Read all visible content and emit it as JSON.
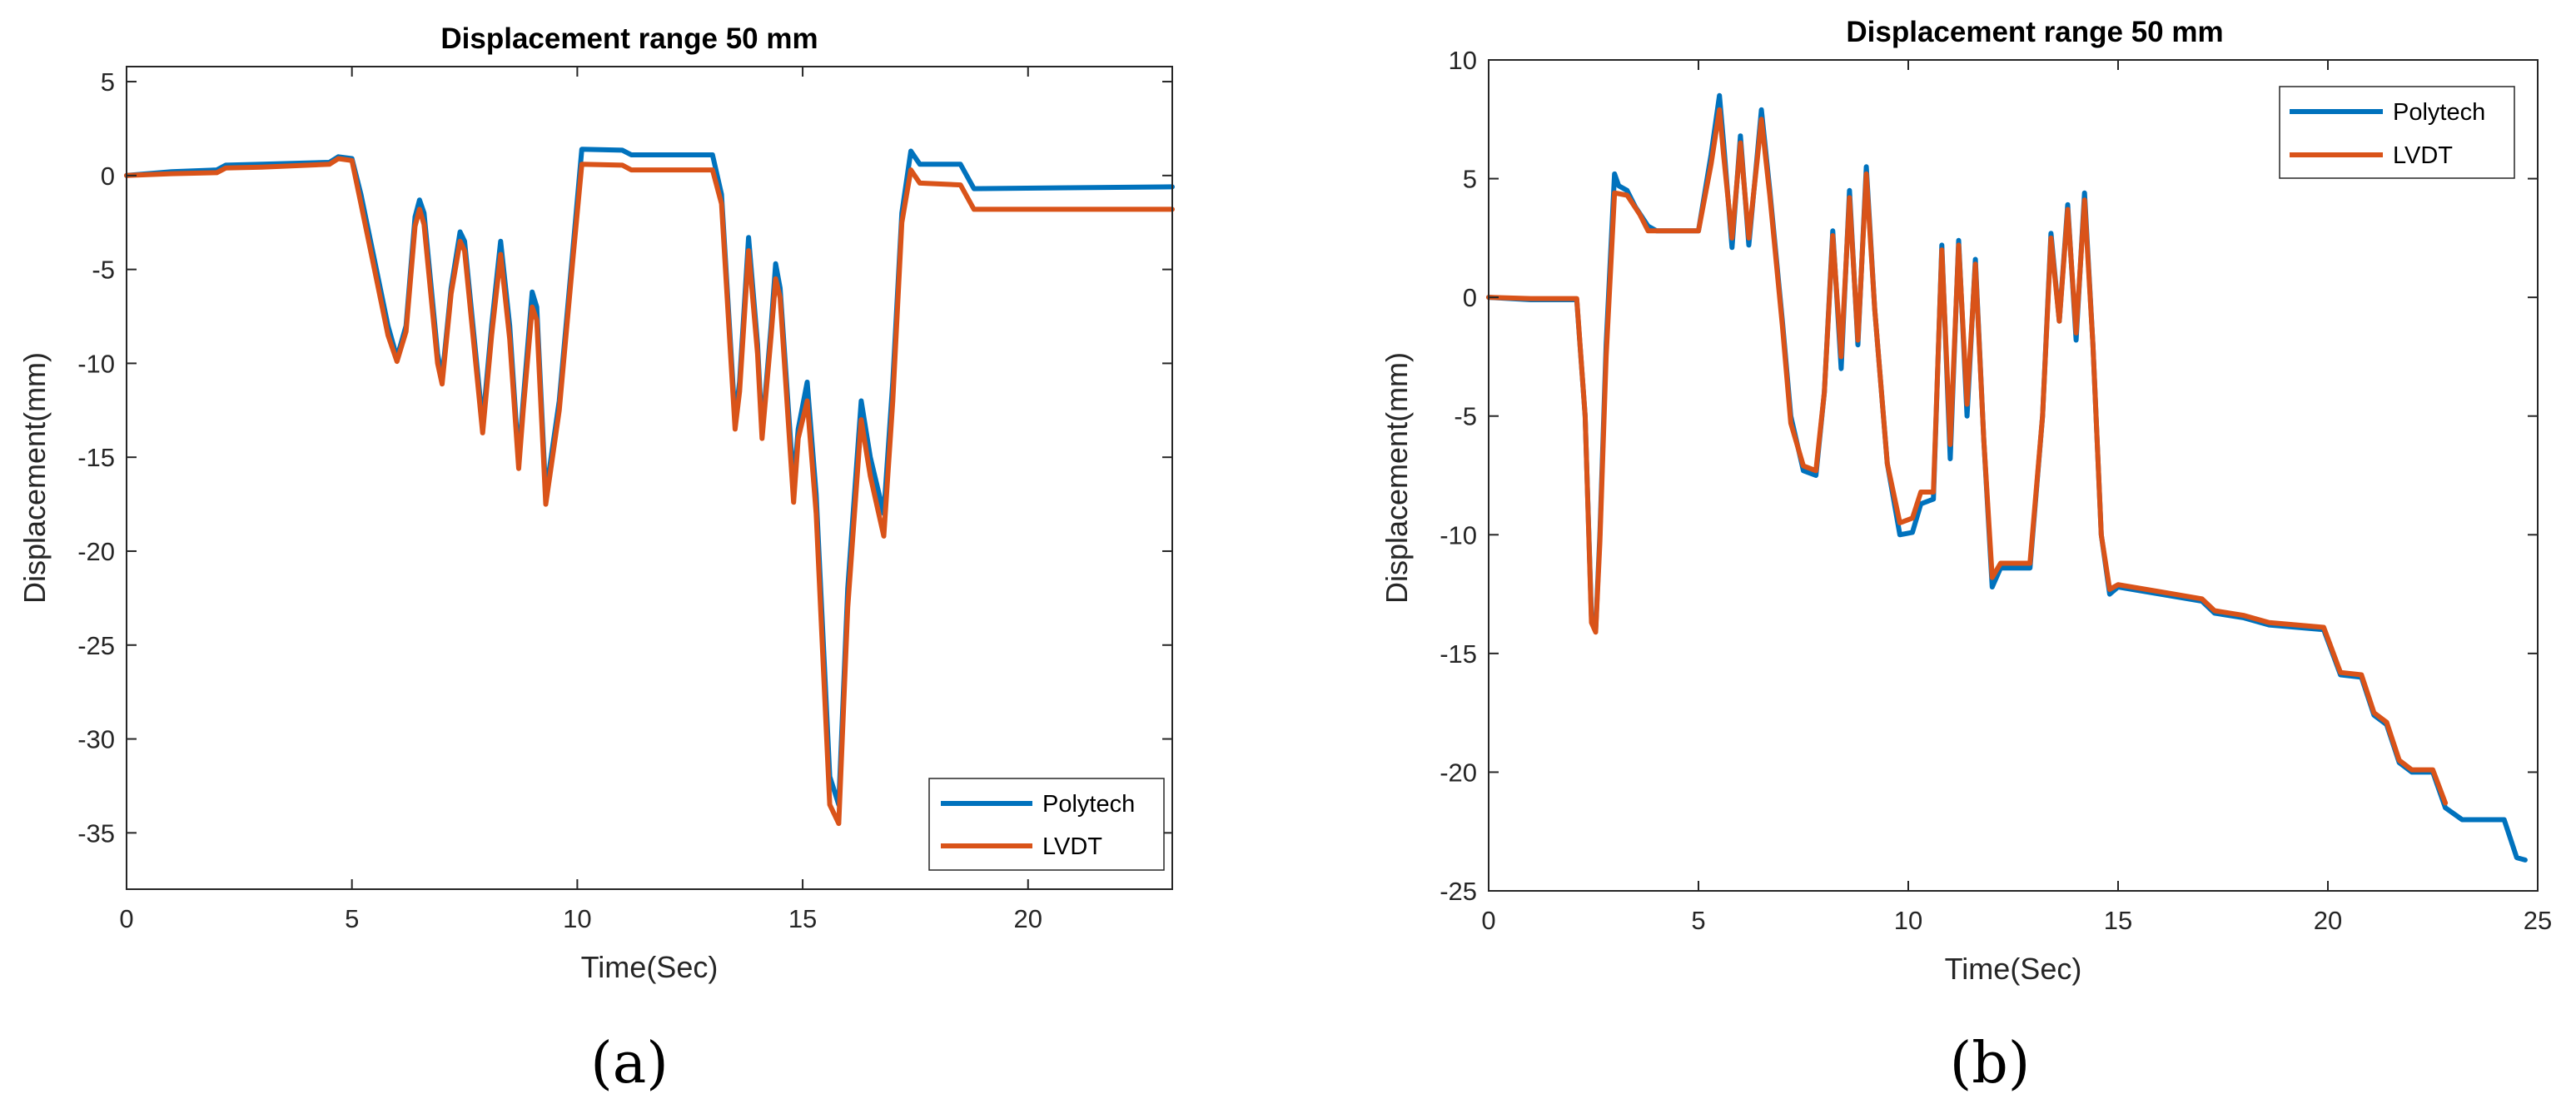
{
  "colors": {
    "polytech": "#0072BD",
    "lvdt": "#D95319",
    "axis": "#262626",
    "background": "#ffffff"
  },
  "chart_data": [
    {
      "panel_label": "(a)",
      "type": "line",
      "title": "Displacement range 50 mm",
      "xlabel": "Time(Sec)",
      "ylabel": "Displacement(mm)",
      "xlim": [
        0,
        23.2
      ],
      "ylim": [
        -38,
        5.8
      ],
      "xticks": [
        0,
        5,
        10,
        15,
        20
      ],
      "yticks": [
        5,
        0,
        -5,
        -10,
        -15,
        -20,
        -25,
        -30,
        -35
      ],
      "legend_position": "bottom-right",
      "series": [
        {
          "name": "Polytech",
          "points": [
            [
              0,
              0
            ],
            [
              1,
              0.2
            ],
            [
              2,
              0.3
            ],
            [
              2.2,
              0.55
            ],
            [
              3,
              0.6
            ],
            [
              4.5,
              0.7
            ],
            [
              4.7,
              1
            ],
            [
              5,
              0.9
            ],
            [
              5.2,
              -1
            ],
            [
              5.5,
              -4.5
            ],
            [
              5.8,
              -8
            ],
            [
              6,
              -9.7
            ],
            [
              6.2,
              -8
            ],
            [
              6.4,
              -2.2
            ],
            [
              6.5,
              -1.3
            ],
            [
              6.6,
              -2
            ],
            [
              6.9,
              -9.5
            ],
            [
              7,
              -10.8
            ],
            [
              7.2,
              -6
            ],
            [
              7.4,
              -3
            ],
            [
              7.5,
              -3.5
            ],
            [
              7.9,
              -13.2
            ],
            [
              8.1,
              -8
            ],
            [
              8.3,
              -3.5
            ],
            [
              8.5,
              -8
            ],
            [
              8.7,
              -15.2
            ],
            [
              8.8,
              -12
            ],
            [
              9,
              -6.2
            ],
            [
              9.1,
              -7
            ],
            [
              9.3,
              -17
            ],
            [
              9.6,
              -12
            ],
            [
              9.9,
              -4
            ],
            [
              10.1,
              1.4
            ],
            [
              11,
              1.35
            ],
            [
              11.2,
              1.1
            ],
            [
              13,
              1.1
            ],
            [
              13.2,
              -1
            ],
            [
              13.5,
              -13
            ],
            [
              13.6,
              -11
            ],
            [
              13.8,
              -3.3
            ],
            [
              14,
              -9
            ],
            [
              14.1,
              -13.7
            ],
            [
              14.3,
              -8
            ],
            [
              14.4,
              -4.7
            ],
            [
              14.5,
              -6
            ],
            [
              14.8,
              -16.5
            ],
            [
              14.9,
              -13.5
            ],
            [
              15.1,
              -11
            ],
            [
              15.3,
              -17
            ],
            [
              15.6,
              -32
            ],
            [
              15.8,
              -33.5
            ],
            [
              16,
              -22
            ],
            [
              16.3,
              -12
            ],
            [
              16.5,
              -15
            ],
            [
              16.8,
              -18
            ],
            [
              17,
              -11
            ],
            [
              17.2,
              -2
            ],
            [
              17.4,
              1.3
            ],
            [
              17.6,
              0.6
            ],
            [
              18.5,
              0.6
            ],
            [
              18.8,
              -0.7
            ],
            [
              23.2,
              -0.6
            ]
          ]
        },
        {
          "name": "LVDT",
          "points": [
            [
              0,
              0
            ],
            [
              1,
              0.1
            ],
            [
              2,
              0.15
            ],
            [
              2.2,
              0.4
            ],
            [
              3,
              0.45
            ],
            [
              4.5,
              0.6
            ],
            [
              4.7,
              0.9
            ],
            [
              5,
              0.8
            ],
            [
              5.2,
              -1.5
            ],
            [
              5.5,
              -5
            ],
            [
              5.8,
              -8.5
            ],
            [
              6,
              -9.9
            ],
            [
              6.2,
              -8.3
            ],
            [
              6.4,
              -2.7
            ],
            [
              6.5,
              -1.8
            ],
            [
              6.6,
              -2.6
            ],
            [
              6.9,
              -10
            ],
            [
              7,
              -11.1
            ],
            [
              7.2,
              -6.3
            ],
            [
              7.4,
              -3.5
            ],
            [
              7.5,
              -4
            ],
            [
              7.9,
              -13.7
            ],
            [
              8.1,
              -8.5
            ],
            [
              8.3,
              -4.2
            ],
            [
              8.5,
              -8.7
            ],
            [
              8.7,
              -15.6
            ],
            [
              8.8,
              -12.5
            ],
            [
              9,
              -7
            ],
            [
              9.1,
              -7.7
            ],
            [
              9.3,
              -17.5
            ],
            [
              9.6,
              -12.5
            ],
            [
              9.9,
              -4.5
            ],
            [
              10.1,
              0.6
            ],
            [
              11,
              0.55
            ],
            [
              11.2,
              0.3
            ],
            [
              13,
              0.3
            ],
            [
              13.2,
              -1.5
            ],
            [
              13.5,
              -13.5
            ],
            [
              13.6,
              -11.5
            ],
            [
              13.8,
              -4
            ],
            [
              14,
              -9.5
            ],
            [
              14.1,
              -14
            ],
            [
              14.3,
              -8.5
            ],
            [
              14.4,
              -5.5
            ],
            [
              14.5,
              -6.5
            ],
            [
              14.8,
              -17.4
            ],
            [
              14.9,
              -14
            ],
            [
              15.1,
              -12
            ],
            [
              15.3,
              -18
            ],
            [
              15.6,
              -33.5
            ],
            [
              15.8,
              -34.5
            ],
            [
              16,
              -23
            ],
            [
              16.3,
              -13
            ],
            [
              16.5,
              -16
            ],
            [
              16.8,
              -19.2
            ],
            [
              17,
              -12
            ],
            [
              17.2,
              -2.5
            ],
            [
              17.4,
              0.3
            ],
            [
              17.6,
              -0.4
            ],
            [
              18.5,
              -0.5
            ],
            [
              18.8,
              -1.8
            ],
            [
              23.2,
              -1.8
            ]
          ]
        }
      ]
    },
    {
      "panel_label": "(b)",
      "type": "line",
      "title": "Displacement range 50 mm",
      "xlabel": "Time(Sec)",
      "ylabel": "Displacement(mm)",
      "xlim": [
        0,
        25
      ],
      "ylim": [
        -25,
        10
      ],
      "xticks": [
        0,
        5,
        10,
        15,
        20,
        25
      ],
      "yticks": [
        10,
        5,
        0,
        -5,
        -10,
        -15,
        -20,
        -25
      ],
      "legend_position": "top-right",
      "series": [
        {
          "name": "Polytech",
          "points": [
            [
              0,
              0
            ],
            [
              1,
              -0.1
            ],
            [
              2.1,
              -0.1
            ],
            [
              2.3,
              -5
            ],
            [
              2.45,
              -13.5
            ],
            [
              2.55,
              -14
            ],
            [
              2.65,
              -10
            ],
            [
              2.8,
              -2
            ],
            [
              3,
              5.2
            ],
            [
              3.1,
              4.7
            ],
            [
              3.3,
              4.5
            ],
            [
              3.5,
              3.8
            ],
            [
              3.8,
              3
            ],
            [
              4,
              2.8
            ],
            [
              5,
              2.8
            ],
            [
              5.3,
              6
            ],
            [
              5.5,
              8.5
            ],
            [
              5.6,
              6.5
            ],
            [
              5.8,
              2.1
            ],
            [
              6,
              6.8
            ],
            [
              6.2,
              2.2
            ],
            [
              6.4,
              6
            ],
            [
              6.5,
              7.9
            ],
            [
              6.7,
              4.5
            ],
            [
              7,
              -1
            ],
            [
              7.2,
              -5
            ],
            [
              7.5,
              -7.3
            ],
            [
              7.8,
              -7.5
            ],
            [
              8,
              -4
            ],
            [
              8.2,
              2.8
            ],
            [
              8.4,
              -3
            ],
            [
              8.6,
              4.5
            ],
            [
              8.8,
              -2
            ],
            [
              9,
              5.5
            ],
            [
              9.2,
              -0.5
            ],
            [
              9.5,
              -7
            ],
            [
              9.8,
              -10
            ],
            [
              10.1,
              -9.9
            ],
            [
              10.3,
              -8.7
            ],
            [
              10.6,
              -8.5
            ],
            [
              10.8,
              2.2
            ],
            [
              11,
              -6.8
            ],
            [
              11.2,
              2.4
            ],
            [
              11.4,
              -5
            ],
            [
              11.6,
              1.6
            ],
            [
              11.8,
              -6
            ],
            [
              12,
              -12.2
            ],
            [
              12.2,
              -11.4
            ],
            [
              12.9,
              -11.4
            ],
            [
              13.2,
              -5
            ],
            [
              13.4,
              2.7
            ],
            [
              13.6,
              -1
            ],
            [
              13.8,
              3.9
            ],
            [
              14,
              -1.8
            ],
            [
              14.2,
              4.4
            ],
            [
              14.4,
              -2
            ],
            [
              14.6,
              -10
            ],
            [
              14.8,
              -12.5
            ],
            [
              15,
              -12.2
            ],
            [
              16,
              -12.5
            ],
            [
              17,
              -12.8
            ],
            [
              17.3,
              -13.3
            ],
            [
              18,
              -13.5
            ],
            [
              18.6,
              -13.8
            ],
            [
              19.9,
              -14
            ],
            [
              20.3,
              -15.9
            ],
            [
              20.8,
              -16
            ],
            [
              21.1,
              -17.6
            ],
            [
              21.4,
              -18
            ],
            [
              21.7,
              -19.6
            ],
            [
              22,
              -20
            ],
            [
              22.5,
              -20
            ],
            [
              22.8,
              -21.5
            ],
            [
              23.2,
              -22
            ],
            [
              23.5,
              -22
            ],
            [
              24.2,
              -22
            ],
            [
              24.5,
              -23.6
            ],
            [
              24.7,
              -23.7
            ]
          ]
        },
        {
          "name": "LVDT",
          "points": [
            [
              0,
              0
            ],
            [
              1,
              -0.05
            ],
            [
              2.1,
              -0.05
            ],
            [
              2.3,
              -5
            ],
            [
              2.45,
              -13.7
            ],
            [
              2.55,
              -14.1
            ],
            [
              2.65,
              -10.3
            ],
            [
              2.8,
              -2.5
            ],
            [
              3,
              4.4
            ],
            [
              3.3,
              4.3
            ],
            [
              3.6,
              3.5
            ],
            [
              3.8,
              2.8
            ],
            [
              5,
              2.8
            ],
            [
              5.3,
              5.6
            ],
            [
              5.5,
              7.9
            ],
            [
              5.6,
              6
            ],
            [
              5.8,
              2.5
            ],
            [
              6,
              6.5
            ],
            [
              6.2,
              2.5
            ],
            [
              6.4,
              5.8
            ],
            [
              6.5,
              7.5
            ],
            [
              6.7,
              4.3
            ],
            [
              7,
              -1.2
            ],
            [
              7.2,
              -5.3
            ],
            [
              7.5,
              -7.1
            ],
            [
              7.8,
              -7.3
            ],
            [
              8,
              -4
            ],
            [
              8.2,
              2.6
            ],
            [
              8.4,
              -2.5
            ],
            [
              8.6,
              4.2
            ],
            [
              8.8,
              -1.8
            ],
            [
              9,
              5.2
            ],
            [
              9.2,
              -0.5
            ],
            [
              9.5,
              -7
            ],
            [
              9.8,
              -9.5
            ],
            [
              10.1,
              -9.3
            ],
            [
              10.3,
              -8.2
            ],
            [
              10.6,
              -8.2
            ],
            [
              10.8,
              2
            ],
            [
              11,
              -6.2
            ],
            [
              11.2,
              2.2
            ],
            [
              11.4,
              -4.5
            ],
            [
              11.6,
              1.4
            ],
            [
              11.8,
              -6
            ],
            [
              12,
              -11.8
            ],
            [
              12.2,
              -11.2
            ],
            [
              12.9,
              -11.2
            ],
            [
              13.2,
              -5
            ],
            [
              13.4,
              2.5
            ],
            [
              13.6,
              -1
            ],
            [
              13.8,
              3.7
            ],
            [
              14,
              -1.5
            ],
            [
              14.2,
              4.1
            ],
            [
              14.4,
              -2
            ],
            [
              14.6,
              -10
            ],
            [
              14.8,
              -12.3
            ],
            [
              15,
              -12.1
            ],
            [
              16,
              -12.4
            ],
            [
              17,
              -12.7
            ],
            [
              17.3,
              -13.2
            ],
            [
              18,
              -13.4
            ],
            [
              18.6,
              -13.7
            ],
            [
              19.9,
              -13.9
            ],
            [
              20.3,
              -15.8
            ],
            [
              20.8,
              -15.9
            ],
            [
              21.1,
              -17.5
            ],
            [
              21.4,
              -17.9
            ],
            [
              21.7,
              -19.5
            ],
            [
              22,
              -19.9
            ],
            [
              22.5,
              -19.9
            ],
            [
              22.8,
              -21.3
            ]
          ]
        }
      ]
    }
  ]
}
